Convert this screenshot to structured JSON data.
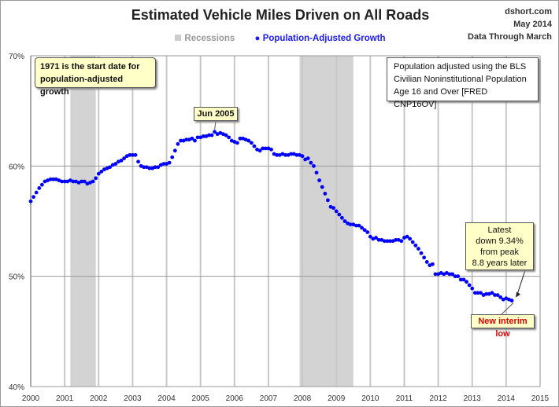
{
  "header": {
    "title": "Estimated Vehicle Miles Driven on All Roads",
    "source": "dshort.com",
    "date": "May 2014",
    "through": "Data Through March"
  },
  "legend": {
    "recessions": "Recessions",
    "series": "Population-Adjusted Growth"
  },
  "annotations": {
    "start_note": "1971 is the start date for population-adjusted growth",
    "peak_label": "Jun 2005",
    "bls_note": [
      "Population adjusted using the BLS",
      "Civilian Noninstitutional Population",
      "Age 16 and Over  [FRED CNP16OV]"
    ],
    "latest": [
      "Latest",
      "down 9.34%",
      "from peak",
      "8.8 years later"
    ],
    "low": "New interim low"
  },
  "colors": {
    "series": "#0000ff",
    "recession": "#d3d3d3",
    "note_bg": "#ffffc8",
    "low_text": "#e00000"
  },
  "chart_data": {
    "type": "scatter",
    "title": "Estimated Vehicle Miles Driven on All Roads",
    "xlim": [
      2000,
      2015
    ],
    "ylim": [
      40,
      70
    ],
    "yticks": [
      "40%",
      "50%",
      "60%",
      "70%"
    ],
    "ytick_values": [
      40,
      50,
      60,
      70
    ],
    "xticks": [
      "2000",
      "2001",
      "2002",
      "2003",
      "2004",
      "2005",
      "2006",
      "2007",
      "2008",
      "2009",
      "2010",
      "2011",
      "2012",
      "2013",
      "2014",
      "2015"
    ],
    "grid": true,
    "legend_position": "top",
    "recessions": [
      [
        "2001-03",
        "2001-11"
      ],
      [
        "2007-12",
        "2009-06"
      ]
    ],
    "series": [
      {
        "name": "Population-Adjusted Growth",
        "start": "2000-01",
        "frequency": "monthly",
        "values": [
          56.8,
          57.2,
          57.6,
          58.0,
          58.3,
          58.6,
          58.7,
          58.8,
          58.8,
          58.8,
          58.7,
          58.6,
          58.6,
          58.6,
          58.7,
          58.6,
          58.6,
          58.5,
          58.6,
          58.6,
          58.4,
          58.5,
          58.6,
          58.9,
          59.3,
          59.5,
          59.7,
          59.8,
          59.9,
          60.1,
          60.2,
          60.4,
          60.5,
          60.7,
          60.9,
          61.0,
          61.0,
          61.0,
          60.4,
          60.0,
          59.9,
          59.9,
          59.8,
          59.8,
          59.9,
          59.9,
          60.1,
          60.2,
          60.2,
          60.3,
          60.8,
          61.4,
          62.0,
          62.3,
          62.3,
          62.4,
          62.4,
          62.5,
          62.3,
          62.6,
          62.6,
          62.7,
          62.7,
          62.8,
          62.8,
          63.1,
          62.9,
          63.0,
          62.9,
          62.8,
          62.6,
          62.3,
          62.2,
          62.1,
          62.5,
          62.5,
          62.4,
          62.3,
          62.1,
          61.8,
          61.5,
          61.4,
          61.6,
          61.6,
          61.6,
          61.5,
          61.1,
          61.0,
          61.0,
          61.1,
          61.0,
          61.0,
          61.1,
          61.1,
          61.0,
          61.0,
          60.9,
          60.6,
          60.7,
          60.3,
          60.0,
          59.4,
          58.7,
          58.1,
          57.5,
          56.9,
          56.3,
          56.2,
          55.9,
          55.6,
          55.3,
          55.0,
          54.8,
          54.7,
          54.7,
          54.6,
          54.6,
          54.4,
          54.2,
          54.0,
          53.6,
          53.4,
          53.5,
          53.3,
          53.3,
          53.2,
          53.2,
          53.2,
          53.2,
          53.3,
          53.3,
          53.2,
          53.5,
          53.6,
          53.4,
          53.1,
          52.8,
          52.5,
          52.1,
          51.7,
          51.3,
          51.0,
          51.1,
          50.2,
          50.2,
          50.3,
          50.2,
          50.3,
          50.2,
          50.2,
          50.0,
          50.0,
          49.7,
          49.7,
          49.5,
          49.2,
          48.9,
          48.5,
          48.5,
          48.5,
          48.3,
          48.4,
          48.4,
          48.5,
          48.3,
          48.3,
          48.1,
          47.9,
          48.0,
          47.9,
          47.8
        ]
      }
    ]
  }
}
